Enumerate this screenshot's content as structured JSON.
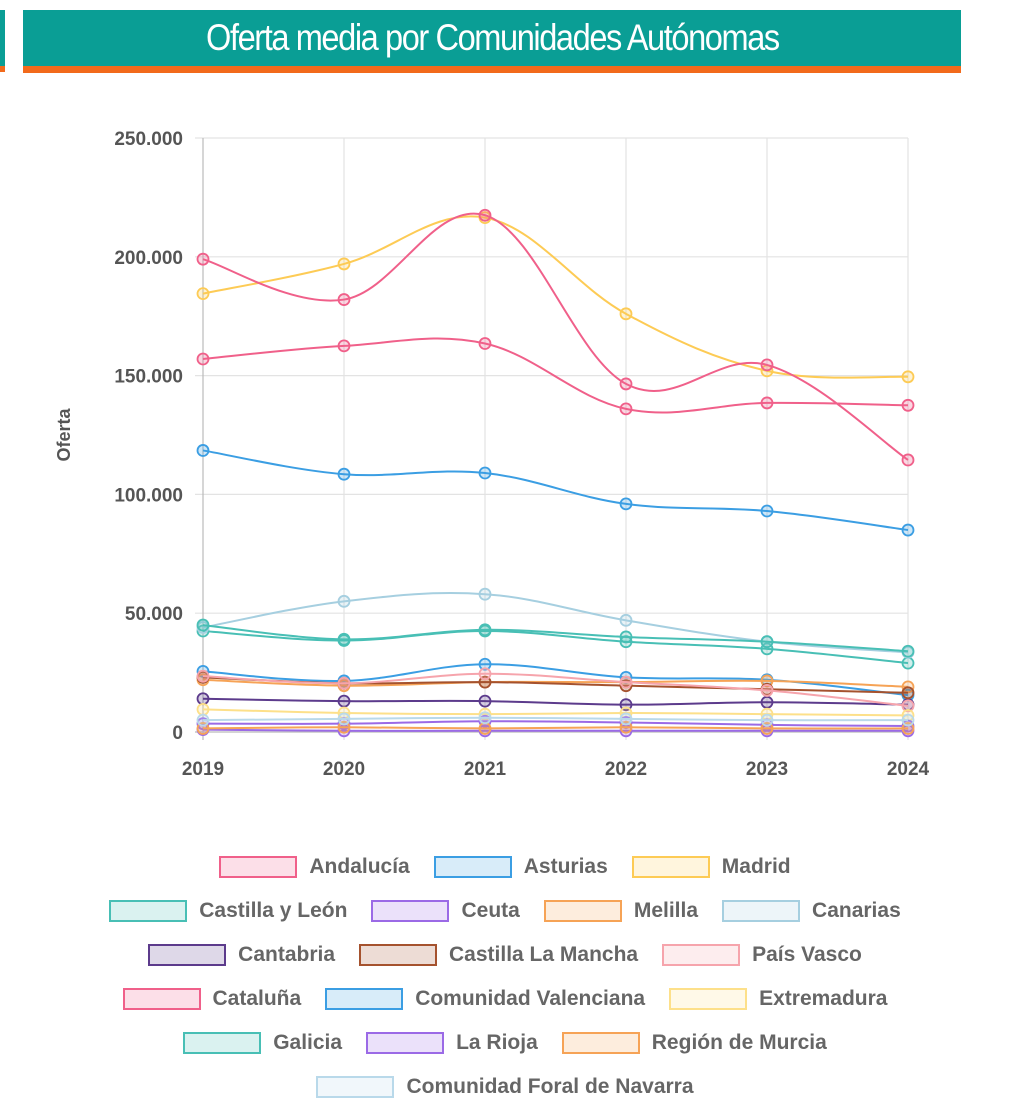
{
  "header": {
    "title": "Oferta media por Comunidades Autónomas"
  },
  "chart_data": {
    "type": "line",
    "title": "Oferta media por Comunidades Autónomas",
    "xlabel": "",
    "ylabel": "Oferta",
    "x": [
      "2019",
      "2020",
      "2021",
      "2022",
      "2023",
      "2024"
    ],
    "ylim": [
      0,
      250000
    ],
    "yticks": [
      "0",
      "50.000",
      "100.000",
      "150.000",
      "200.000",
      "250.000"
    ],
    "grid": true,
    "legend_position": "bottom",
    "series": [
      {
        "name": "Andalucía",
        "color": "#f0608a",
        "values": [
          157000,
          162500,
          163500,
          136000,
          138500,
          137500
        ]
      },
      {
        "name": "Asturias",
        "color": "#3b9ee3",
        "values": [
          25500,
          21500,
          28500,
          23000,
          22000,
          15500
        ]
      },
      {
        "name": "Madrid",
        "color": "#fdcb55",
        "values": [
          184500,
          197000,
          216500,
          176000,
          152000,
          149500
        ]
      },
      {
        "name": "Castilla y León",
        "color": "#48bfb5",
        "values": [
          42500,
          38500,
          42500,
          38000,
          35000,
          29000
        ]
      },
      {
        "name": "Ceuta",
        "color": "#9b6ae6",
        "values": [
          1000,
          500,
          500,
          500,
          500,
          500
        ]
      },
      {
        "name": "Melilla",
        "color": "#f6a356",
        "values": [
          22000,
          19500,
          21000,
          21000,
          21500,
          19000
        ]
      },
      {
        "name": "Canarias",
        "color": "#a6cfe0",
        "values": [
          44000,
          55000,
          58000,
          47000,
          38000,
          33500
        ]
      },
      {
        "name": "Cantabria",
        "color": "#5c3b8c",
        "values": [
          14000,
          13000,
          13000,
          11500,
          12500,
          11500
        ]
      },
      {
        "name": "Castilla La Mancha",
        "color": "#a5522e",
        "values": [
          23000,
          20500,
          21000,
          19500,
          18000,
          16500
        ]
      },
      {
        "name": "País Vasco",
        "color": "#f6a4ac",
        "values": [
          23500,
          20500,
          24500,
          21000,
          17500,
          11000
        ]
      },
      {
        "name": "Cataluña",
        "color": "#f0608a",
        "values": [
          199000,
          182000,
          217500,
          146500,
          154500,
          114500
        ]
      },
      {
        "name": "Comunidad Valenciana",
        "color": "#3b9ee3",
        "values": [
          118500,
          108500,
          109000,
          96000,
          93000,
          85000
        ]
      },
      {
        "name": "Extremadura",
        "color": "#fde08a",
        "values": [
          9500,
          8000,
          7500,
          8000,
          7500,
          7000
        ]
      },
      {
        "name": "Galicia",
        "color": "#48bfb5",
        "values": [
          45000,
          39000,
          43000,
          40000,
          38000,
          34000
        ]
      },
      {
        "name": "La Rioja",
        "color": "#9b6ae6",
        "values": [
          3500,
          3500,
          4500,
          4000,
          3000,
          2500
        ]
      },
      {
        "name": "Región de Murcia",
        "color": "#f6a356",
        "values": [
          1500,
          2000,
          1500,
          2000,
          1500,
          1500
        ]
      },
      {
        "name": "Comunidad Foral de Navarra",
        "color": "#b9d9ea",
        "values": [
          5000,
          5500,
          6000,
          5500,
          5000,
          5000
        ]
      }
    ]
  }
}
